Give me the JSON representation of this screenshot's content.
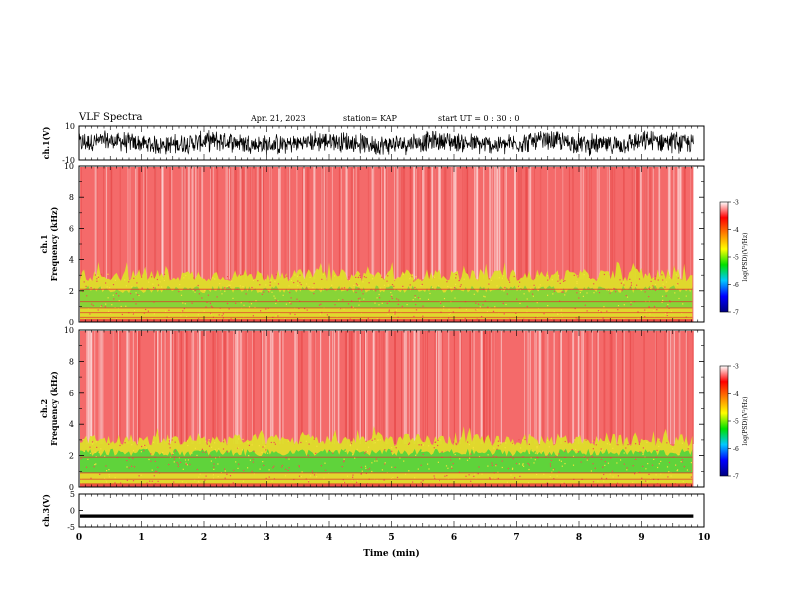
{
  "header": {
    "title": "VLF Spectra",
    "date": "Apr. 21, 2023",
    "station": "station= KAP",
    "start_time": "start  UT =   0  : 30 : 0"
  },
  "colors": {
    "spectrum_background": "#f46a6a",
    "mid_band": "#dede2a",
    "low_band": "#3fd23f",
    "line": "#e03030",
    "colorbar": [
      "#000080",
      "#0000ff",
      "#00c8ff",
      "#00e000",
      "#ffff00",
      "#ff8000",
      "#ff0000",
      "#ffffff"
    ]
  },
  "chart_data": [
    {
      "type": "line",
      "panel": "ch1-waveform",
      "ylabel": "ch.1(V)",
      "ylim": [
        -10,
        10
      ],
      "yticks": [
        "10",
        "-10"
      ],
      "xlim": [
        0,
        10
      ],
      "description_values": {
        "mean_amplitude_range": [
          -7,
          7
        ],
        "center": 0
      }
    },
    {
      "type": "heatmap",
      "panel": "ch1-spectrogram",
      "ylabel_lines": [
        "ch.1",
        "Frequency  (kHz)"
      ],
      "ylim": [
        0,
        10
      ],
      "yticks": [
        "0",
        "2",
        "4",
        "6",
        "8",
        "10"
      ],
      "xlim": [
        0,
        10
      ],
      "data_end_min": 9.83,
      "bands_khz": {
        "low_intense": [
          0,
          3.0
        ],
        "horizontal_lines": [
          2.1,
          1.3,
          0.9,
          0.6,
          0.3
        ]
      },
      "colorbar": {
        "label": "log(PSD)(V²/Hz)",
        "ticks": [
          "-3",
          "-4",
          "-5",
          "-6",
          "-7"
        ],
        "range": [
          -7,
          -3
        ]
      }
    },
    {
      "type": "heatmap",
      "panel": "ch2-spectrogram",
      "ylabel_lines": [
        "ch.2",
        "Frequency  (kHz)"
      ],
      "ylim": [
        0,
        10
      ],
      "yticks": [
        "0",
        "2",
        "4",
        "6",
        "8",
        "10"
      ],
      "xlim": [
        0,
        10
      ],
      "data_end_min": 9.83,
      "bands_khz": {
        "low_intense": [
          0,
          3.0
        ],
        "horizontal_lines": [
          1.9,
          0.9,
          0.5,
          0.2
        ]
      },
      "colorbar": {
        "label": "log(PSD)(V²/Hz)",
        "ticks": [
          "-3",
          "-4",
          "-5",
          "-6",
          "-7"
        ],
        "range": [
          -7,
          -3
        ]
      }
    },
    {
      "type": "line",
      "panel": "ch3-waveform",
      "ylabel": "ch.3(V)",
      "ylim": [
        -5,
        5
      ],
      "yticks": [
        "5",
        "0",
        "-5"
      ],
      "xlim": [
        0,
        10
      ],
      "description_values": {
        "band": [
          -2.2,
          -1.2
        ]
      }
    }
  ],
  "xaxis": {
    "label": "Time  (min)",
    "ticks": [
      "0",
      "1",
      "2",
      "3",
      "4",
      "5",
      "6",
      "7",
      "8",
      "9",
      "10"
    ]
  }
}
